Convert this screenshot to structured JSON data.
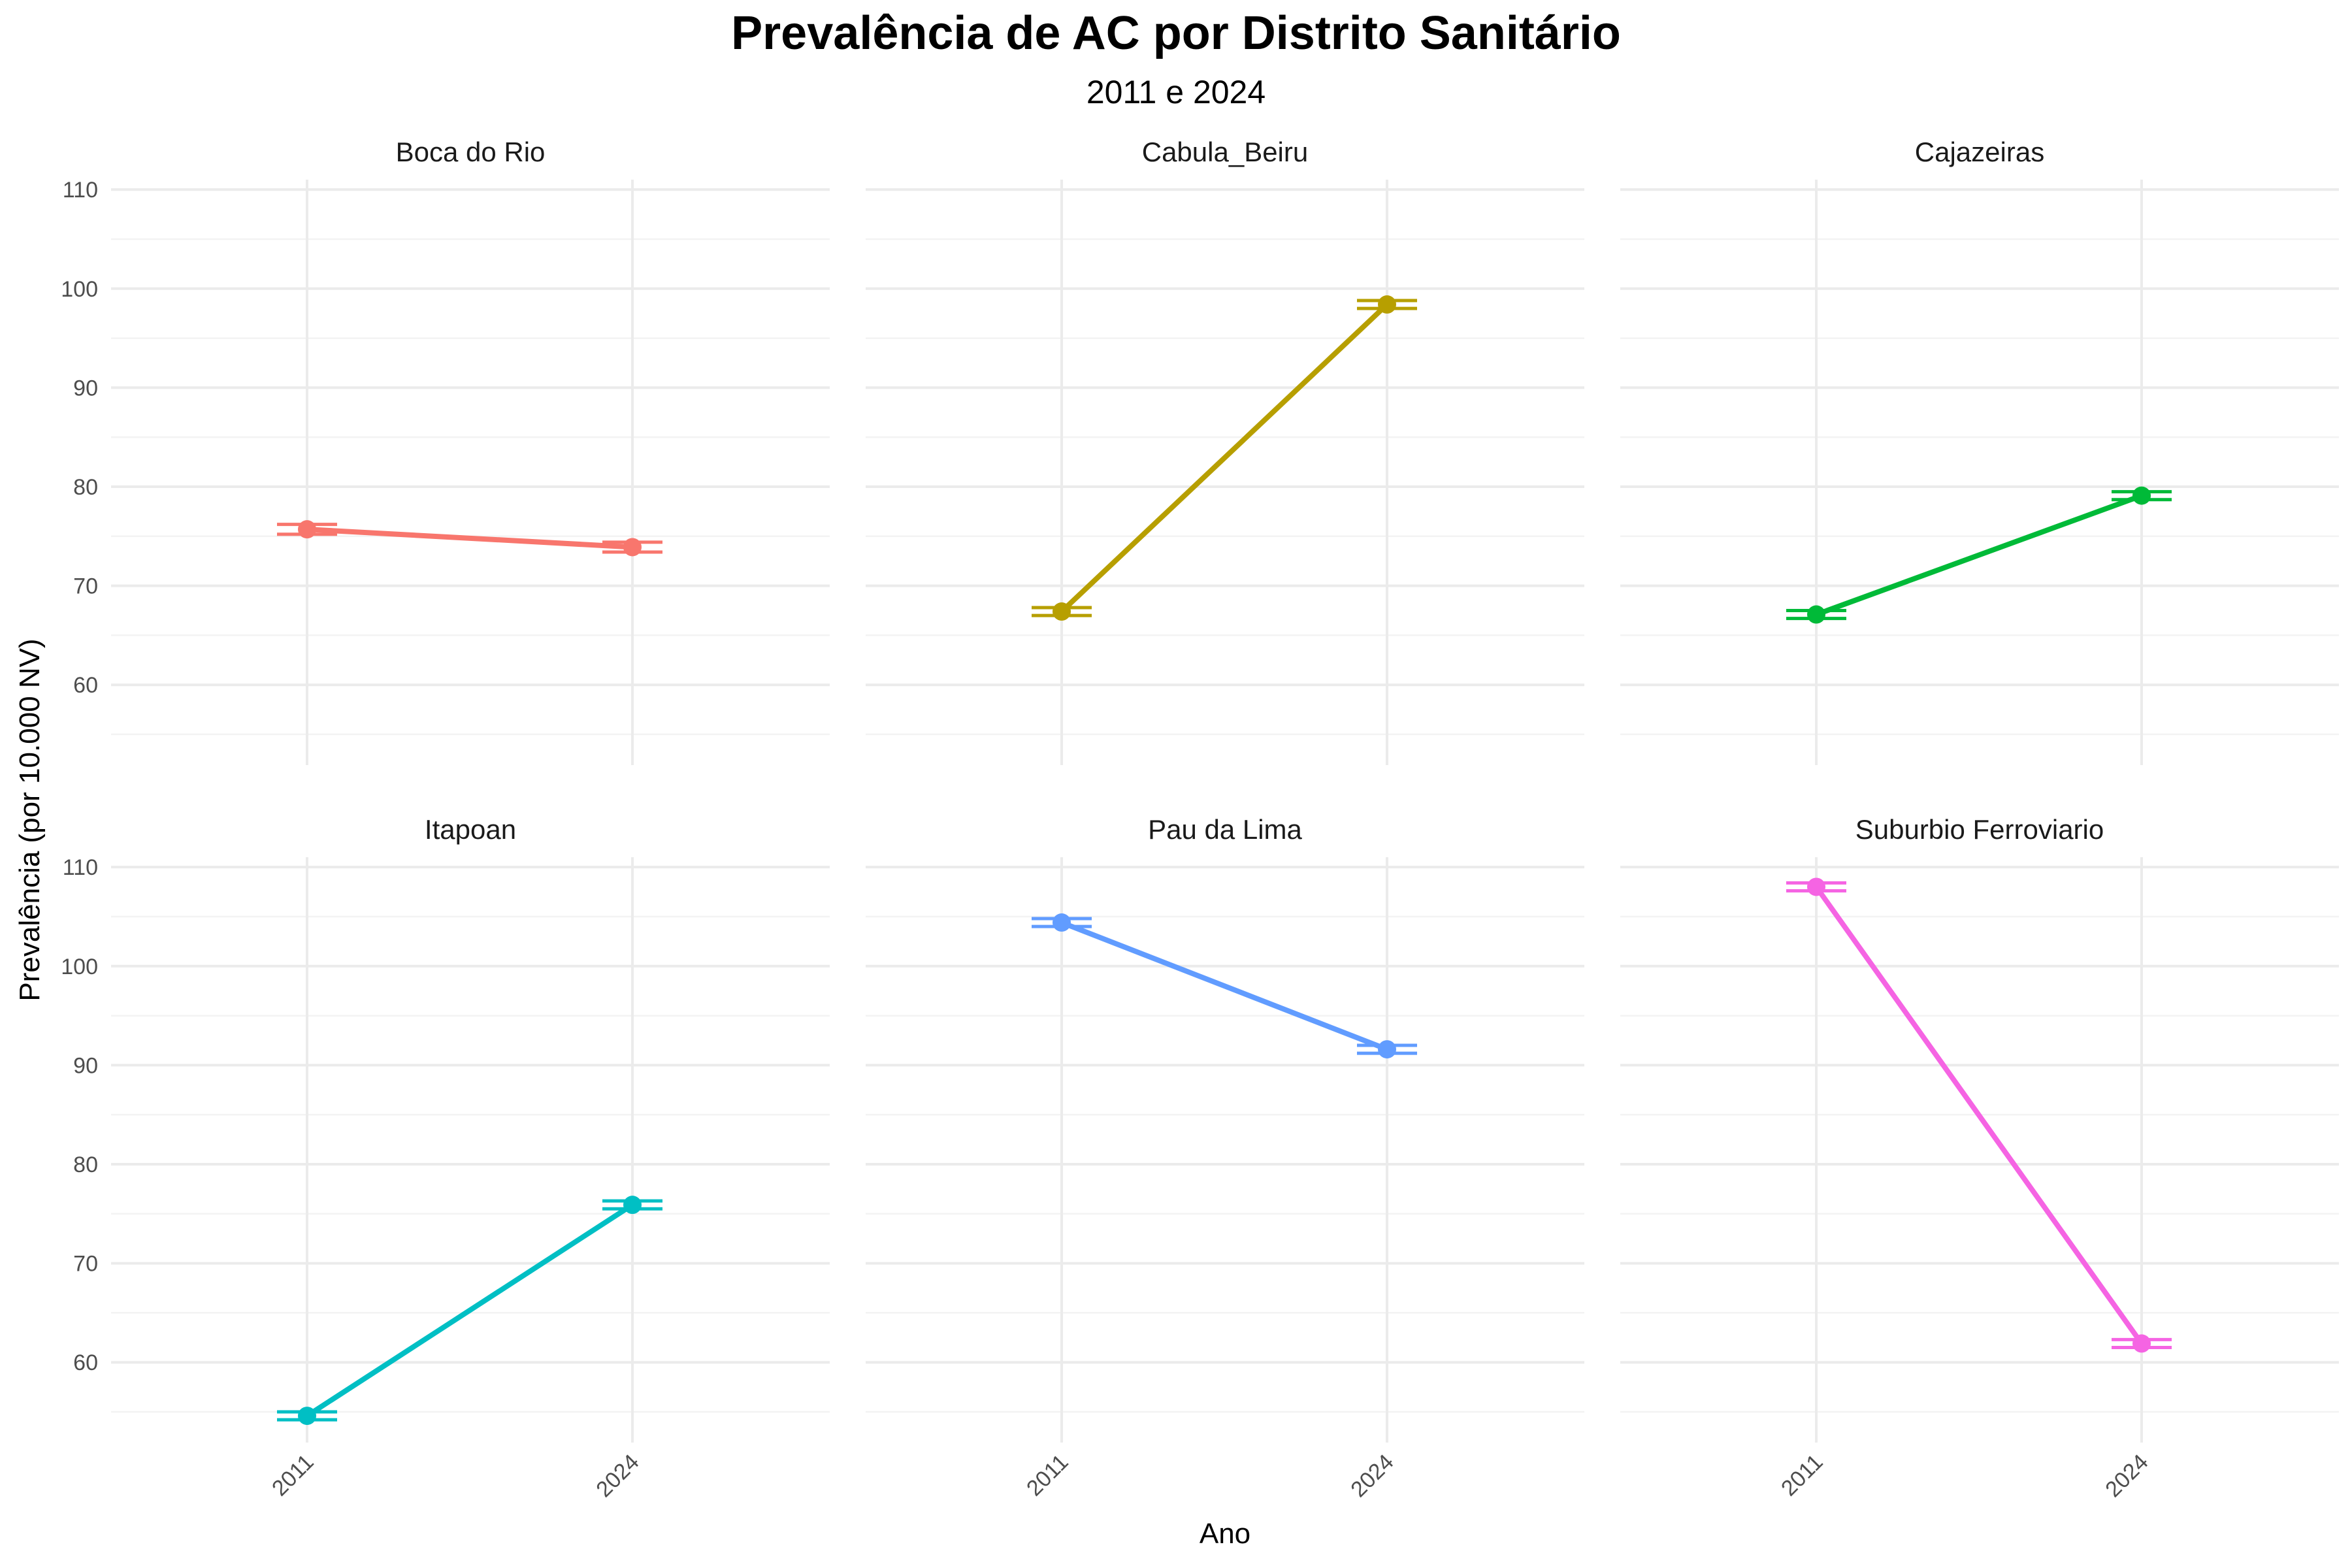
{
  "chart_data": {
    "type": "line",
    "title": "Prevalência de AC por Distrito Sanitário",
    "subtitle": "2011 e 2024",
    "xlabel": "Ano",
    "ylabel": "Prevalência (por 10.000 NV)",
    "x": [
      "2011",
      "2024"
    ],
    "ylim": [
      51.9,
      111.0
    ],
    "y_ticks": [
      "60",
      "70",
      "80",
      "90",
      "100",
      "110"
    ],
    "y_tick_values": [
      60,
      70,
      80,
      90,
      100,
      110
    ],
    "grid": true,
    "legend": "none",
    "facets": [
      {
        "name": "Boca do Rio",
        "color": "#F8766D",
        "values": [
          75.7,
          73.9
        ],
        "ci_low": [
          75.2,
          73.4
        ],
        "ci_high": [
          76.2,
          74.4
        ]
      },
      {
        "name": "Cabula_Beiru",
        "color": "#B79F00",
        "values": [
          67.4,
          98.4
        ],
        "ci_low": [
          67.0,
          98.0
        ],
        "ci_high": [
          67.8,
          98.8
        ]
      },
      {
        "name": "Cajazeiras",
        "color": "#00BA38",
        "values": [
          67.1,
          79.1
        ],
        "ci_low": [
          66.7,
          78.7
        ],
        "ci_high": [
          67.5,
          79.5
        ]
      },
      {
        "name": "Itapoan",
        "color": "#00BFC4",
        "values": [
          54.6,
          75.9
        ],
        "ci_low": [
          54.2,
          75.5
        ],
        "ci_high": [
          55.0,
          76.3
        ]
      },
      {
        "name": "Pau da Lima",
        "color": "#619CFF",
        "values": [
          104.4,
          91.6
        ],
        "ci_low": [
          104.0,
          91.2
        ],
        "ci_high": [
          104.8,
          92.0
        ]
      },
      {
        "name": "Suburbio Ferroviario",
        "color": "#F564E3",
        "values": [
          108.0,
          61.9
        ],
        "ci_low": [
          107.6,
          61.5
        ],
        "ci_high": [
          108.4,
          62.3
        ]
      }
    ]
  }
}
